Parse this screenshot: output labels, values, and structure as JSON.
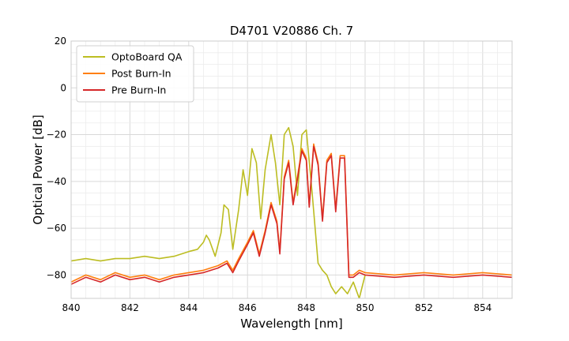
{
  "chart_data": {
    "type": "line",
    "title": "D4701 V20886 Ch. 7",
    "xlabel": "Wavelength [nm]",
    "ylabel": "Optical Power [dB]",
    "xlim": [
      840,
      855
    ],
    "ylim": [
      -90,
      20
    ],
    "xticks": [
      840,
      842,
      844,
      846,
      848,
      850,
      852,
      854
    ],
    "yticks": [
      20,
      0,
      -20,
      -40,
      -60,
      -80
    ],
    "xtick_labels": [
      "840",
      "842",
      "844",
      "846",
      "848",
      "850",
      "852",
      "854"
    ],
    "ytick_labels": [
      "20",
      "0",
      "−20",
      "−40",
      "−60",
      "−80"
    ],
    "grid": true,
    "legend_position": "top-left",
    "colors": {
      "OptoBoard QA": "#bcbd22",
      "Post Burn-In": "#ff7f0e",
      "Pre Burn-In": "#d62728"
    },
    "series": [
      {
        "name": "OptoBoard QA",
        "x": [
          840.0,
          840.5,
          841.0,
          841.5,
          842.0,
          842.5,
          843.0,
          843.5,
          844.0,
          844.3,
          844.5,
          844.6,
          844.7,
          844.9,
          845.1,
          845.2,
          845.35,
          845.5,
          845.7,
          845.85,
          846.0,
          846.15,
          846.3,
          846.45,
          846.6,
          846.8,
          846.95,
          847.1,
          847.25,
          847.4,
          847.55,
          847.7,
          847.85,
          848.0,
          848.2,
          848.4,
          848.55,
          848.7,
          848.85,
          849.0,
          849.2,
          849.4,
          849.6,
          849.8,
          850.0
        ],
        "y": [
          -74,
          -73,
          -74,
          -73,
          -73,
          -72,
          -73,
          -72,
          -70,
          -69,
          -66,
          -63,
          -65,
          -72,
          -62,
          -50,
          -52,
          -69,
          -52,
          -35,
          -46,
          -26,
          -32,
          -56,
          -35,
          -20,
          -32,
          -50,
          -20,
          -17,
          -25,
          -46,
          -20,
          -18,
          -45,
          -75,
          -78,
          -80,
          -85,
          -88,
          -85,
          -88,
          -83,
          -90,
          -80
        ]
      },
      {
        "name": "Post Burn-In",
        "x": [
          840.0,
          840.5,
          841.0,
          841.5,
          842.0,
          842.5,
          843.0,
          843.5,
          844.0,
          844.5,
          845.0,
          845.3,
          845.5,
          845.7,
          846.0,
          846.2,
          846.4,
          846.6,
          846.8,
          847.0,
          847.1,
          847.25,
          847.4,
          847.55,
          847.7,
          847.85,
          848.0,
          848.1,
          848.25,
          848.4,
          848.55,
          848.7,
          848.85,
          849.0,
          849.15,
          849.3,
          849.45,
          849.6,
          849.8,
          850.0,
          851.0,
          852.0,
          853.0,
          854.0,
          855.0
        ],
        "y": [
          -83,
          -80,
          -82,
          -79,
          -81,
          -80,
          -82,
          -80,
          -79,
          -78,
          -76,
          -74,
          -78,
          -73,
          -66,
          -61,
          -71,
          -61,
          -49,
          -57,
          -70,
          -38,
          -31,
          -49,
          -38,
          -26,
          -30,
          -50,
          -24,
          -32,
          -56,
          -31,
          -28,
          -52,
          -29,
          -29,
          -80,
          -80,
          -78,
          -79,
          -80,
          -79,
          -80,
          -79,
          -80
        ]
      },
      {
        "name": "Pre Burn-In",
        "x": [
          840.0,
          840.5,
          841.0,
          841.5,
          842.0,
          842.5,
          843.0,
          843.5,
          844.0,
          844.5,
          845.0,
          845.3,
          845.5,
          845.7,
          846.0,
          846.2,
          846.4,
          846.6,
          846.8,
          847.0,
          847.1,
          847.25,
          847.4,
          847.55,
          847.7,
          847.85,
          848.0,
          848.1,
          848.25,
          848.4,
          848.55,
          848.7,
          848.85,
          849.0,
          849.15,
          849.3,
          849.45,
          849.6,
          849.8,
          850.0,
          851.0,
          852.0,
          853.0,
          854.0,
          855.0
        ],
        "y": [
          -84,
          -81,
          -83,
          -80,
          -82,
          -81,
          -83,
          -81,
          -80,
          -79,
          -77,
          -75,
          -79,
          -74,
          -67,
          -62,
          -72,
          -62,
          -50,
          -58,
          -71,
          -39,
          -32,
          -50,
          -39,
          -27,
          -31,
          -51,
          -25,
          -33,
          -57,
          -32,
          -29,
          -53,
          -30,
          -30,
          -81,
          -81,
          -79,
          -80,
          -81,
          -80,
          -81,
          -80,
          -81
        ]
      }
    ]
  }
}
